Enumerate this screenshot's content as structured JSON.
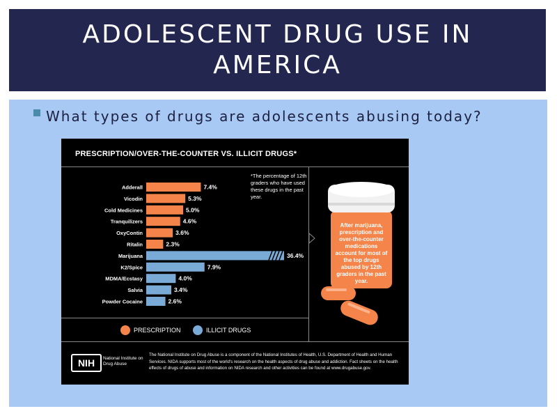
{
  "slide": {
    "title": "ADOLESCENT DRUG USE IN AMERICA",
    "bullet": "What types of drugs are adolescents abusing today?"
  },
  "infographic": {
    "footnote": "*The percentage of 12th graders who have used these drugs in the past year.",
    "callout": "After marijuana, prescription and over-the-counter medications account for most of the top drugs abused by 12th graders in the past year.",
    "footer": {
      "logo": "NIH",
      "org_name": "National Institute on Drug Abuse",
      "text": "The National Institute on Drug Abuse is a component of the National Institutes of Health, U.S. Department of Health and Human Services. NIDA supports most of the world's research on the health aspects of drug abuse and addiction. Fact sheets on the health effects of drugs of abuse and information on NIDA research and other activities can be found at www.drugabuse.gov."
    }
  },
  "chart_data": {
    "type": "bar",
    "orientation": "horizontal",
    "title": "PRESCRIPTION/OVER-THE-COUNTER VS. ILLICIT DRUGS*",
    "categories": [
      "Adderall",
      "Vicodin",
      "Cold Medicines",
      "Tranquilizers",
      "OxyContin",
      "Ritalin",
      "Marijuana",
      "K2/Spice",
      "MDMA/Ecstasy",
      "Salvia",
      "Powder Cocaine"
    ],
    "values": [
      7.4,
      5.3,
      5.0,
      4.6,
      3.6,
      2.3,
      36.4,
      7.9,
      4.0,
      3.4,
      2.6
    ],
    "value_labels": [
      "7.4%",
      "5.3%",
      "5.0%",
      "4.6%",
      "3.6%",
      "2.3%",
      "36.4%",
      "7.9%",
      "4.0%",
      "3.4%",
      "2.6%"
    ],
    "groups": [
      "prescription",
      "prescription",
      "prescription",
      "prescription",
      "prescription",
      "prescription",
      "illicit",
      "illicit",
      "illicit",
      "illicit",
      "illicit"
    ],
    "truncated": [
      false,
      false,
      false,
      false,
      false,
      false,
      true,
      false,
      false,
      false,
      false
    ],
    "legend": [
      {
        "key": "prescription",
        "label": "PRESCRIPTION",
        "color": "#f4844a"
      },
      {
        "key": "illicit",
        "label": "ILLICIT DRUGS",
        "color": "#7aaad6"
      }
    ],
    "legend_position": "bottom",
    "unit": "%",
    "grid": false
  }
}
